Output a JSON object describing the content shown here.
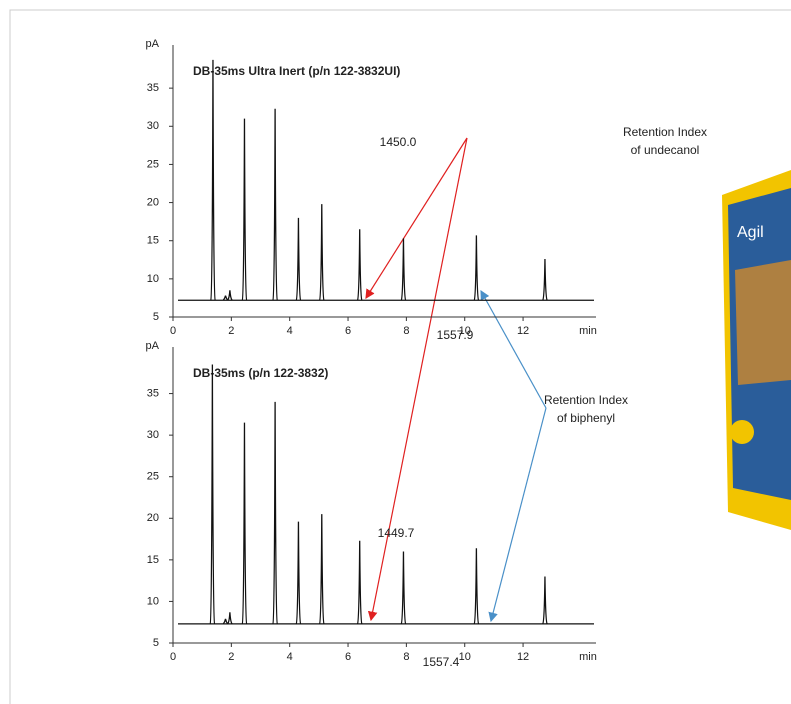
{
  "chart_data": [
    {
      "type": "chromatogram",
      "title": "DB-35ms Ultra Inert (p/n 122-3832UI)",
      "xlabel": "min",
      "ylabel": "pA",
      "xlim": [
        0,
        14.5
      ],
      "xticks": [
        0,
        2,
        4,
        6,
        8,
        10,
        12
      ],
      "ylim": [
        5,
        40
      ],
      "yticks": [
        5,
        10,
        15,
        20,
        25,
        30,
        35
      ],
      "baseline": 7.2,
      "color": "#111111",
      "x": [
        1.37,
        1.8,
        1.95,
        2.45,
        3.5,
        4.3,
        5.1,
        6.4,
        7.9,
        10.4,
        12.75
      ],
      "values": [
        38.7,
        7.8,
        8.5,
        31,
        32.3,
        18,
        19.8,
        16.5,
        15.3,
        15.7,
        12.6
      ]
    },
    {
      "type": "chromatogram",
      "title": "DB-35ms (p/n 122-3832)",
      "xlabel": "min",
      "ylabel": "pA",
      "xlim": [
        0,
        14.5
      ],
      "xticks": [
        0,
        2,
        4,
        6,
        8,
        10,
        12
      ],
      "ylim": [
        5,
        40
      ],
      "yticks": [
        5,
        10,
        15,
        20,
        25,
        30,
        35
      ],
      "baseline": 7.3,
      "color": "#111111",
      "x": [
        1.35,
        1.8,
        1.95,
        2.45,
        3.5,
        4.3,
        5.1,
        6.4,
        7.9,
        10.4,
        12.75
      ],
      "values": [
        38.5,
        7.9,
        8.7,
        31.5,
        34,
        19.6,
        20.5,
        17.3,
        16,
        16.4,
        13
      ]
    }
  ],
  "annotations": {
    "undecanol_label": [
      "Retention Index",
      "of undecanol"
    ],
    "biphenyl_label": [
      "Retention Index",
      "of biphenyl"
    ],
    "ri_undecanol_top": "1450.0",
    "ri_biphenyl_top": "1557.9",
    "ri_undecanol_bottom": "1449.7",
    "ri_biphenyl_bottom": "1557.4"
  },
  "product": {
    "brand_text": "Agil"
  }
}
